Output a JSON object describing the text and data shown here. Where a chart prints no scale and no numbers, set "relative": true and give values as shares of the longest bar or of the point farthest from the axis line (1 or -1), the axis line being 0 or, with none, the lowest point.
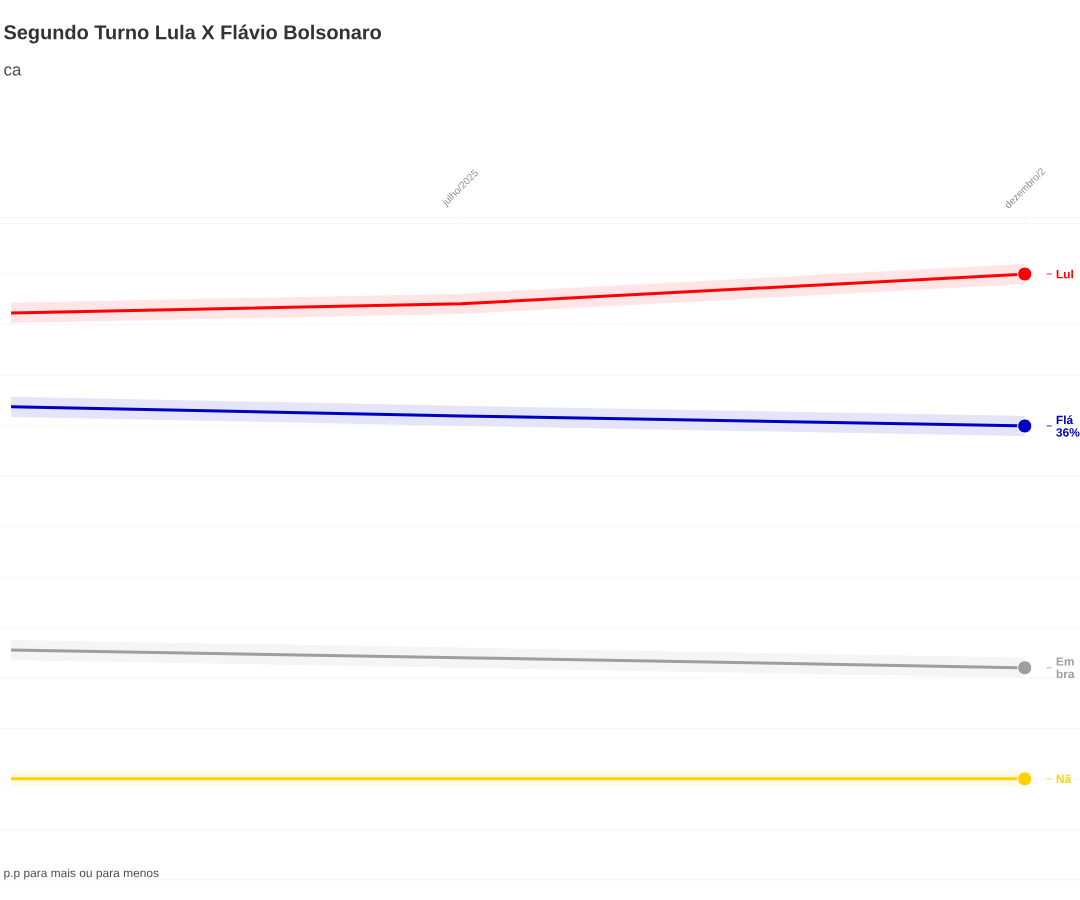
{
  "chart_data": {
    "type": "line",
    "title": "Segundo Turno Lula X Flávio Bolsonaro",
    "subtitle": "ca",
    "relative": true,
    "xlim": [
      "2025-02-26",
      "2025-12-16"
    ],
    "xticks": [
      {
        "value": "2025-07",
        "label": "julho/2025"
      },
      {
        "value": "2025-12",
        "label": "dezembro/2"
      }
    ],
    "grid": "y",
    "legend": "right",
    "line_style": "solid",
    "series": [
      {
        "name": "Lul",
        "color": "#ff0000",
        "x": [
          "2025-03",
          "2025-07",
          "2025-12"
        ],
        "values": [
          0.923,
          0.941,
          1
        ],
        "lower": [
          0.903,
          0.921,
          0.98
        ],
        "upper": [
          0.943,
          0.961,
          1.02
        ]
      },
      {
        "name": "Flá 36%",
        "color": "#0000c0",
        "x": [
          "2025-03",
          "2025-07",
          "2025-12"
        ],
        "values": [
          0.737,
          0.719,
          0.699
        ],
        "lower": [
          0.717,
          0.699,
          0.679
        ],
        "upper": [
          0.757,
          0.739,
          0.719
        ]
      },
      {
        "name": "Em bra",
        "color": "#9e9e9e",
        "x": [
          "2025-03",
          "2025-07",
          "2025-12"
        ],
        "values": [
          0.255,
          0.24,
          0.22
        ],
        "lower": [
          0.235,
          0.22,
          0.2
        ],
        "upper": [
          0.275,
          0.26,
          0.24
        ]
      },
      {
        "name": "Nã",
        "color": "#ffd200",
        "x": [
          "2025-03",
          "2025-07",
          "2025-12"
        ],
        "values": [
          0,
          0,
          0
        ],
        "lower": [
          -0.015,
          -0.015,
          -0.015
        ],
        "upper": [
          0.015,
          0.015,
          0.015
        ]
      }
    ],
    "annotations": [
      "p.p para mais ou para menos"
    ]
  }
}
